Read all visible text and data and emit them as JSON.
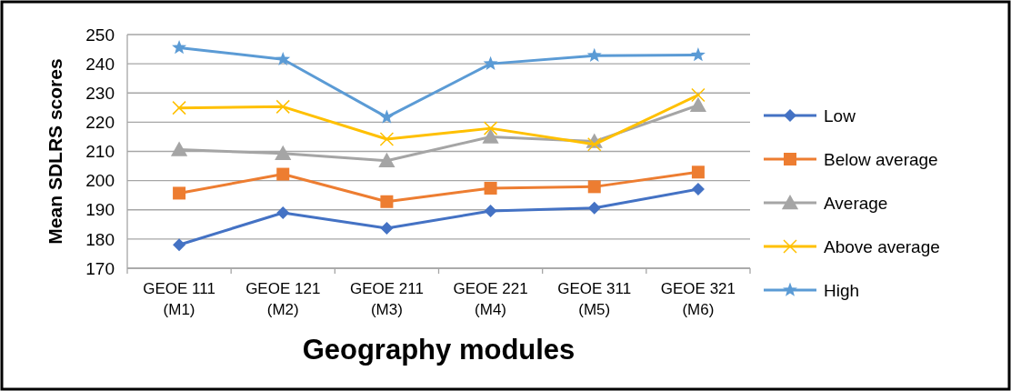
{
  "chart_data": {
    "type": "line",
    "xlabel": "Geography modules",
    "ylabel": "Mean SDLRS scores",
    "categories": [
      "GEOE 111\n(M1)",
      "GEOE 121\n(M2)",
      "GEOE 211\n(M3)",
      "GEOE 221\n(M4)",
      "GEOE 311\n(M5)",
      "GEOE 321\n(M6)"
    ],
    "ylim": [
      170,
      250
    ],
    "yticks": [
      170,
      180,
      190,
      200,
      210,
      220,
      230,
      240,
      250
    ],
    "grid": "y",
    "legend": "right",
    "series": [
      {
        "name": "Low",
        "color": "#4472c4",
        "marker": "diamond",
        "values": [
          178,
          189,
          183.7,
          189.6,
          190.6,
          197.1
        ]
      },
      {
        "name": "Below average",
        "color": "#ed7d31",
        "marker": "square",
        "values": [
          195.7,
          202.2,
          192.8,
          197.4,
          197.9,
          202.9
        ]
      },
      {
        "name": "Average",
        "color": "#a5a5a5",
        "marker": "triangle",
        "values": [
          210.6,
          209.3,
          206.8,
          215,
          213.4,
          225.8
        ]
      },
      {
        "name": "Above average",
        "color": "#ffc000",
        "marker": "cross",
        "values": [
          224.9,
          225.3,
          214.2,
          217.9,
          212.4,
          229.3
        ]
      },
      {
        "name": "High",
        "color": "#5b9bd5",
        "marker": "star",
        "values": [
          245.5,
          241.5,
          221.7,
          240,
          242.8,
          243
        ]
      }
    ]
  }
}
